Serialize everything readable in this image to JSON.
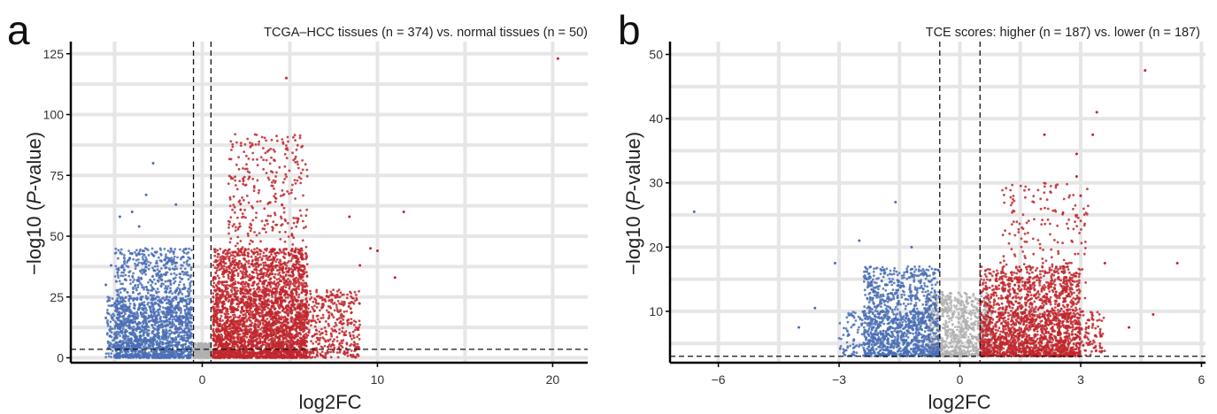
{
  "chart_data": [
    {
      "type": "scatter",
      "panel_label": "a",
      "title": "TCGA–HCC tissues (n = 374) vs. normal tissues (n = 50)",
      "xlabel": "log2FC",
      "ylabel_prefix": "−log10 (",
      "ylabel_italic": "P",
      "ylabel_suffix": "-value)",
      "xlim": [
        -7.5,
        22
      ],
      "ylim": [
        -2,
        130
      ],
      "x_ticks": [
        0,
        10,
        20
      ],
      "x_tick_labels": [
        "0",
        "10",
        "20"
      ],
      "y_ticks": [
        0,
        25,
        50,
        75,
        100,
        125
      ],
      "y_tick_labels": [
        "0",
        "25",
        "50",
        "75",
        "100",
        "125"
      ],
      "grid": true,
      "threshold_x": [
        -0.5,
        0.5
      ],
      "threshold_y": 3.5,
      "colors": {
        "down": "#4a6fb5",
        "up": "#c0272d",
        "ns": "#b0b0b0"
      },
      "series": [
        {
          "group": "down",
          "clusters": [
            {
              "x": [
                -5.0,
                -0.6
              ],
              "y": [
                0,
                45
              ],
              "n": 1400,
              "shape": 1.7
            },
            {
              "x": [
                -5.5,
                -0.6
              ],
              "y": [
                0,
                25
              ],
              "n": 600,
              "shape": 1.0
            }
          ],
          "points": [
            [
              -2.8,
              80
            ],
            [
              -3.2,
              67
            ],
            [
              -4.0,
              60
            ],
            [
              -4.7,
              58
            ],
            [
              -1.5,
              63
            ],
            [
              -5.2,
              38
            ],
            [
              -5.5,
              30
            ],
            [
              -3.6,
              54
            ]
          ]
        },
        {
          "group": "up",
          "clusters": [
            {
              "x": [
                0.6,
                6.0
              ],
              "y": [
                0,
                45
              ],
              "n": 2600,
              "shape": 1.6
            },
            {
              "x": [
                0.6,
                9.0
              ],
              "y": [
                0,
                28
              ],
              "n": 1000,
              "shape": 1.2
            },
            {
              "x": [
                1.5,
                6.0
              ],
              "y": [
                30,
                92
              ],
              "n": 380,
              "shape": 1.0
            }
          ],
          "points": [
            [
              4.8,
              115
            ],
            [
              20.3,
              123
            ],
            [
              11.5,
              60
            ],
            [
              11.0,
              33
            ],
            [
              9.6,
              45
            ],
            [
              9.0,
              38
            ],
            [
              10.0,
              44
            ],
            [
              8.4,
              58
            ]
          ]
        },
        {
          "group": "ns",
          "clusters": [
            {
              "x": [
                -0.5,
                0.5
              ],
              "y": [
                0,
                6
              ],
              "n": 300,
              "shape": 1.3
            }
          ],
          "points": []
        }
      ]
    },
    {
      "type": "scatter",
      "panel_label": "b",
      "title": "TCE scores: higher (n = 187)  vs. lower (n = 187)",
      "xlabel": "log2FC",
      "ylabel_prefix": "−log10 (",
      "ylabel_italic": "P",
      "ylabel_suffix": "-value)",
      "xlim": [
        -7.2,
        6.1
      ],
      "ylim": [
        2,
        52
      ],
      "x_ticks": [
        -6,
        -3,
        0,
        3,
        6
      ],
      "x_tick_labels": [
        "−6",
        "−3",
        "0",
        "3",
        "6"
      ],
      "y_ticks": [
        10,
        20,
        30,
        40,
        50
      ],
      "y_tick_labels": [
        "10",
        "20",
        "30",
        "40",
        "50"
      ],
      "grid": true,
      "threshold_x": [
        -0.5,
        0.5
      ],
      "threshold_y": 3,
      "colors": {
        "down": "#4a6fb5",
        "up": "#c0272d",
        "ns": "#b0b0b0"
      },
      "series": [
        {
          "group": "down",
          "clusters": [
            {
              "x": [
                -2.4,
                -0.5
              ],
              "y": [
                3,
                17
              ],
              "n": 1100,
              "shape": 1.6
            },
            {
              "x": [
                -3.0,
                -0.5
              ],
              "y": [
                3,
                10
              ],
              "n": 300,
              "shape": 1.0
            }
          ],
          "points": [
            [
              -6.6,
              25.5
            ],
            [
              -1.6,
              27
            ],
            [
              -3.1,
              17.5
            ],
            [
              -3.6,
              10.5
            ],
            [
              -4.0,
              7.5
            ],
            [
              -2.5,
              21
            ],
            [
              -1.2,
              20
            ]
          ]
        },
        {
          "group": "up",
          "clusters": [
            {
              "x": [
                0.5,
                3.0
              ],
              "y": [
                3,
                17
              ],
              "n": 1700,
              "shape": 1.6
            },
            {
              "x": [
                0.5,
                3.6
              ],
              "y": [
                3,
                10
              ],
              "n": 400,
              "shape": 1.0
            },
            {
              "x": [
                1.0,
                3.2
              ],
              "y": [
                12,
                30
              ],
              "n": 200,
              "shape": 1.0
            }
          ],
          "points": [
            [
              4.6,
              47.5
            ],
            [
              3.4,
              41
            ],
            [
              3.3,
              37.5
            ],
            [
              2.1,
              37.5
            ],
            [
              2.9,
              34.5
            ],
            [
              3.0,
              28
            ],
            [
              5.4,
              17.5
            ],
            [
              4.2,
              7.5
            ],
            [
              4.8,
              9.5
            ],
            [
              3.6,
              17.5
            ],
            [
              2.9,
              31
            ]
          ]
        },
        {
          "group": "ns",
          "clusters": [
            {
              "x": [
                -0.8,
                0.8
              ],
              "y": [
                3,
                13
              ],
              "n": 900,
              "shape": 1.5
            }
          ],
          "points": []
        }
      ]
    }
  ]
}
